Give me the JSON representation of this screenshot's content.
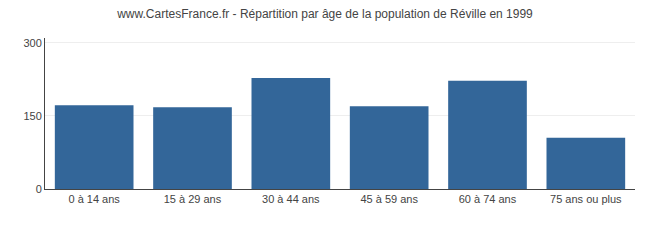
{
  "chart_data": {
    "type": "bar",
    "title": "www.CartesFrance.fr - Répartition par âge de la population de Réville en 1999",
    "categories": [
      "0 à 14 ans",
      "15 à 29 ans",
      "30 à 44 ans",
      "45 à 59 ans",
      "60 à 74 ans",
      "75 ans ou plus"
    ],
    "values": [
      172,
      168,
      228,
      170,
      222,
      105
    ],
    "color": "#336699",
    "ylim": [
      0,
      310
    ],
    "yticks": [
      0,
      150,
      300
    ],
    "grid": true
  }
}
